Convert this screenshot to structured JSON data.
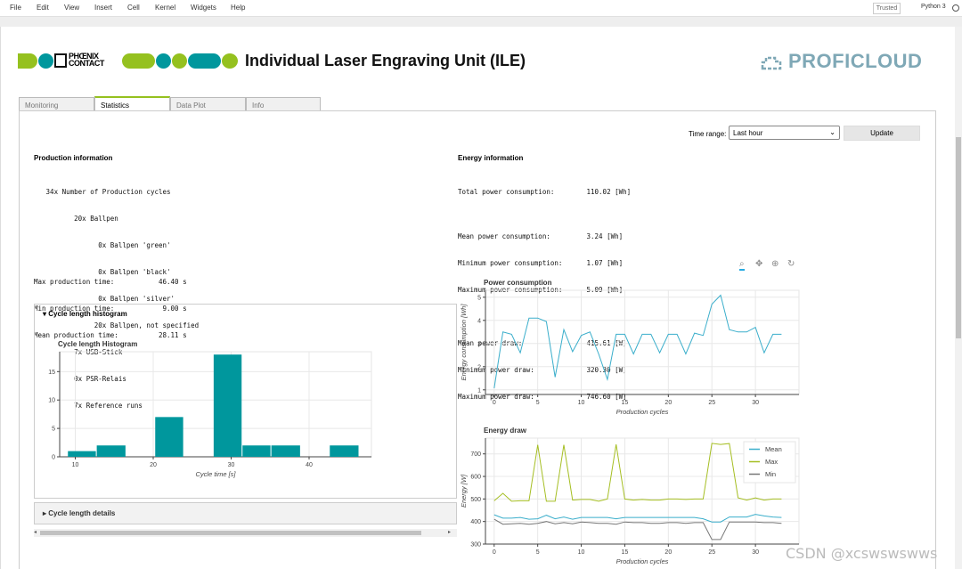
{
  "menubar": {
    "items": [
      "File",
      "Edit",
      "View",
      "Insert",
      "Cell",
      "Kernel",
      "Widgets",
      "Help"
    ],
    "trusted": "Trusted",
    "kernel": "Python 3"
  },
  "header": {
    "logo_text_top": "PHŒNIX",
    "logo_text_bottom": "CONTACT",
    "title": "Individual Laser Engraving Unit (ILE)",
    "brand": "PROFICLOUD",
    "accent_green": "#95c11f",
    "accent_teal": "#00979d"
  },
  "tabs": [
    {
      "label": "Monitoring",
      "active": false
    },
    {
      "label": "Statistics",
      "active": true
    },
    {
      "label": "Data Plot",
      "active": false
    },
    {
      "label": "Info",
      "active": false
    }
  ],
  "controls": {
    "time_range_label": "Time range:",
    "time_range_value": "Last hour",
    "update_label": "Update"
  },
  "production": {
    "title": "Production information",
    "lines": [
      "   34x Number of Production cycles",
      "          20x Ballpen",
      "                0x Ballpen 'green'",
      "                0x Ballpen 'black'",
      "                0x Ballpen 'silver'",
      "               20x Ballpen, not specified",
      "          7x USB-Stick",
      "          0x PSR-Relais",
      "          7x Reference runs"
    ],
    "times": [
      "Max production time:           46.40 s",
      "Min production time:            9.00 s",
      "Mean production time:          28.11 s"
    ]
  },
  "energy": {
    "title": "Energy information",
    "lines": [
      "Total power consumption:        110.02 [Wh]",
      "",
      "Mean power consumption:         3.24 [Wh]",
      "Minimum power consumption:      1.07 [Wh]",
      "Maximum power consumption:      5.09 [Wh]",
      "",
      "Mean power draw:                415.61 [W]",
      "Minimum power draw:             320.30 [W]",
      "Maximum power draw:             746.60 [W]"
    ]
  },
  "histogram_widget": {
    "header": "Cycle length histogram",
    "details_header": "Cycle length details"
  },
  "chart_data": [
    {
      "type": "bar",
      "title": "Cycle length Histogram",
      "xlabel": "Cycle time [s]",
      "ylabel": "",
      "xlim": [
        8,
        48
      ],
      "ylim": [
        0,
        18.5
      ],
      "xticks": [
        10,
        20,
        30,
        40
      ],
      "yticks": [
        0,
        5,
        10,
        15
      ],
      "bins": [
        {
          "x0": 9.0,
          "x1": 12.7,
          "value": 1
        },
        {
          "x0": 12.7,
          "x1": 16.5,
          "value": 2
        },
        {
          "x0": 16.5,
          "x1": 20.2,
          "value": 0
        },
        {
          "x0": 20.2,
          "x1": 23.9,
          "value": 7
        },
        {
          "x0": 23.9,
          "x1": 27.7,
          "value": 0
        },
        {
          "x0": 27.7,
          "x1": 31.4,
          "value": 18
        },
        {
          "x0": 31.4,
          "x1": 35.1,
          "value": 2
        },
        {
          "x0": 35.1,
          "x1": 38.9,
          "value": 2
        },
        {
          "x0": 38.9,
          "x1": 42.6,
          "value": 0
        },
        {
          "x0": 42.6,
          "x1": 46.4,
          "value": 2
        }
      ],
      "color": "#00979d",
      "grid": true
    },
    {
      "type": "line",
      "title": "Power consumption",
      "xlabel": "Production cycles",
      "ylabel": "Energy consumption [Wh]",
      "xlim": [
        -1,
        35
      ],
      "ylim": [
        0.8,
        5.3
      ],
      "xticks": [
        0,
        5,
        10,
        15,
        20,
        25,
        30
      ],
      "yticks": [
        1,
        2,
        3,
        4,
        5
      ],
      "x": [
        0,
        1,
        2,
        3,
        4,
        5,
        6,
        7,
        8,
        9,
        10,
        11,
        12,
        13,
        14,
        15,
        16,
        17,
        18,
        19,
        20,
        21,
        22,
        23,
        24,
        25,
        26,
        27,
        28,
        29,
        30,
        31,
        32,
        33
      ],
      "series": [
        {
          "values": [
            1.07,
            3.5,
            3.4,
            2.6,
            4.1,
            4.1,
            3.95,
            1.55,
            3.6,
            2.65,
            3.35,
            3.5,
            2.55,
            1.45,
            3.4,
            3.4,
            2.55,
            3.4,
            3.4,
            2.6,
            3.4,
            3.4,
            2.55,
            3.45,
            3.35,
            4.7,
            5.09,
            3.6,
            3.5,
            3.5,
            3.7,
            2.6,
            3.4,
            3.4
          ],
          "color": "#3aaecb"
        }
      ],
      "grid": true
    },
    {
      "type": "line",
      "title": "Energy draw",
      "xlabel": "Production cycles",
      "ylabel": "Energy [W]",
      "xlim": [
        -1,
        35
      ],
      "ylim": [
        300,
        770
      ],
      "xticks": [
        0,
        5,
        10,
        15,
        20,
        25,
        30
      ],
      "yticks": [
        300,
        400,
        500,
        600,
        700
      ],
      "x": [
        0,
        1,
        2,
        3,
        4,
        5,
        6,
        7,
        8,
        9,
        10,
        11,
        12,
        13,
        14,
        15,
        16,
        17,
        18,
        19,
        20,
        21,
        22,
        23,
        24,
        25,
        26,
        27,
        28,
        29,
        30,
        31,
        32,
        33
      ],
      "legend": "top-right",
      "series": [
        {
          "name": "Mean",
          "color": "#3aaecb",
          "values": [
            430,
            415,
            415,
            418,
            410,
            412,
            428,
            412,
            420,
            410,
            418,
            418,
            418,
            418,
            412,
            418,
            418,
            418,
            418,
            418,
            418,
            418,
            418,
            418,
            412,
            398,
            398,
            420,
            420,
            420,
            432,
            425,
            420,
            418
          ]
        },
        {
          "name": "Max",
          "color": "#a5be22",
          "values": [
            492,
            525,
            490,
            492,
            492,
            740,
            490,
            490,
            740,
            495,
            498,
            498,
            490,
            500,
            742,
            500,
            495,
            498,
            495,
            495,
            500,
            500,
            498,
            500,
            500,
            746.6,
            742,
            746,
            505,
            495,
            505,
            495,
            500,
            500
          ]
        },
        {
          "name": "Min",
          "color": "#777777",
          "values": [
            410,
            388,
            390,
            392,
            388,
            392,
            400,
            390,
            395,
            390,
            398,
            395,
            392,
            392,
            388,
            398,
            395,
            395,
            392,
            392,
            395,
            395,
            392,
            395,
            395,
            320.3,
            320.3,
            398,
            398,
            398,
            398,
            395,
            395,
            392
          ]
        }
      ],
      "grid": true
    }
  ],
  "watermark": "CSDN @xcswswswws"
}
